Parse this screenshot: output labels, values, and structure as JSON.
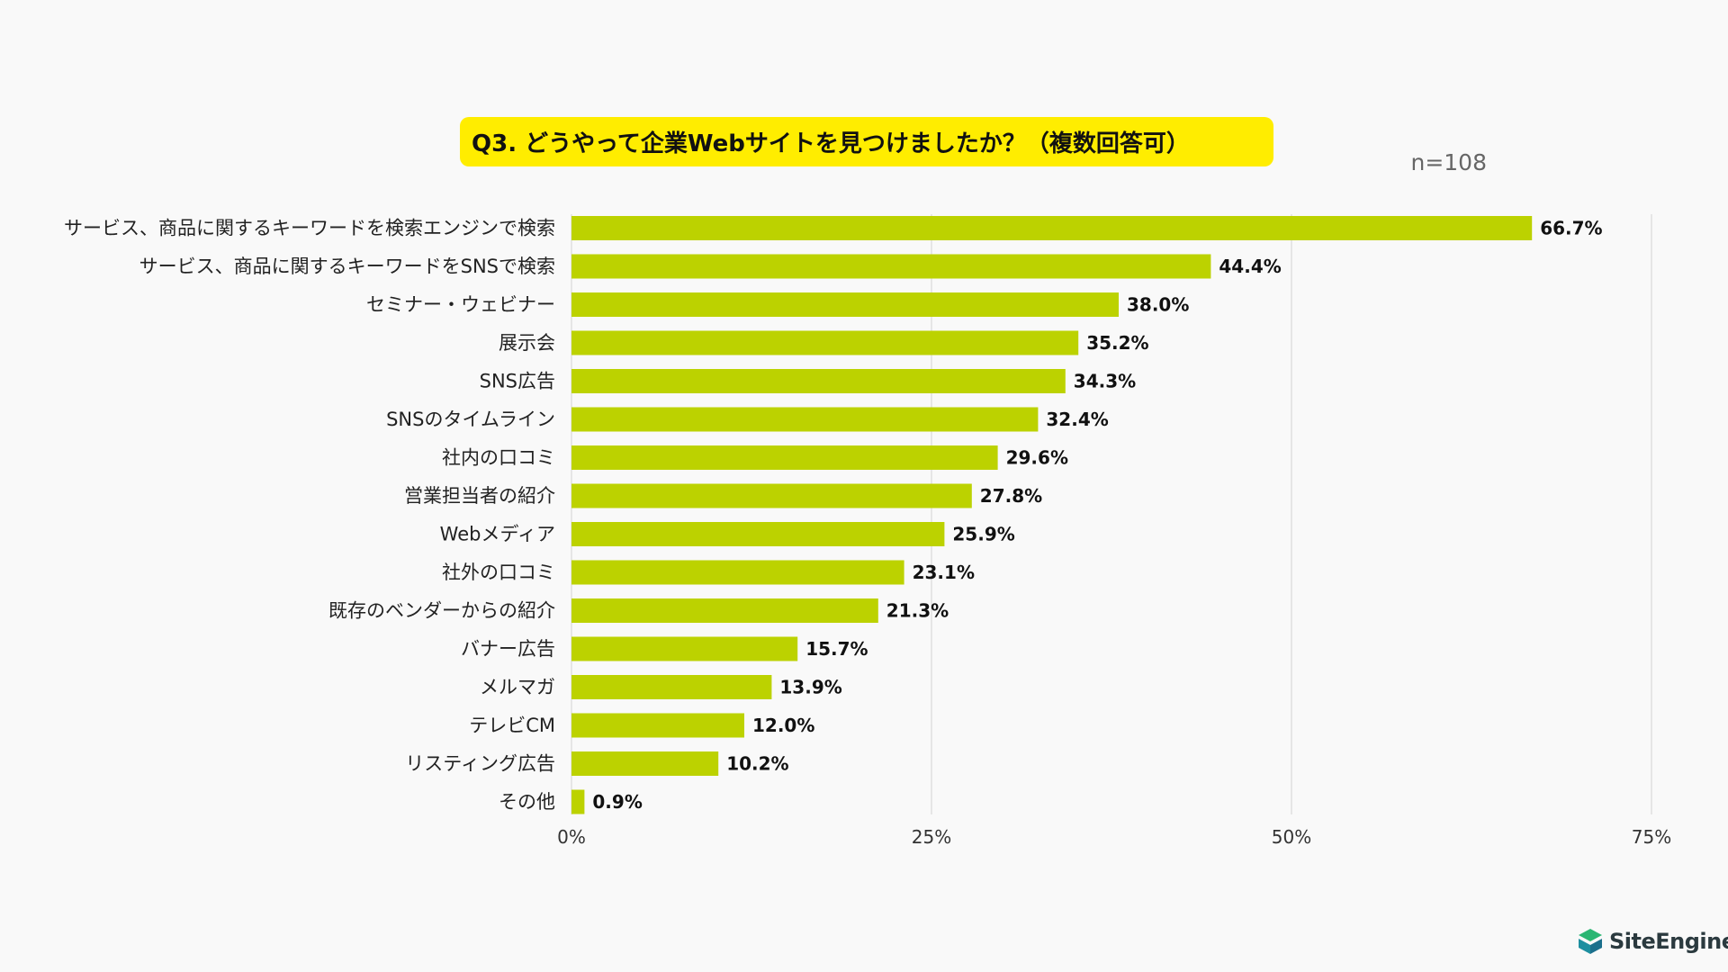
{
  "chart_data": {
    "type": "bar",
    "orientation": "horizontal",
    "title": "Q3. どうやって企業Webサイトを見つけましたか？（複数回答可）",
    "sample_size": "n=108",
    "categories": [
      "サービス、商品に関するキーワードを検索エンジンで検索",
      "サービス、商品に関するキーワードをSNSで検索",
      "セミナー・ウェビナー",
      "展示会",
      "SNS広告",
      "SNSのタイムライン",
      "社内の口コミ",
      "営業担当者の紹介",
      "Webメディア",
      "社外の口コミ",
      "既存のベンダーからの紹介",
      "バナー広告",
      "メルマガ",
      "テレビCM",
      "リスティング広告",
      "その他"
    ],
    "values": [
      66.7,
      44.4,
      38.0,
      35.2,
      34.3,
      32.4,
      29.6,
      27.8,
      25.9,
      23.1,
      21.3,
      15.7,
      13.9,
      12.0,
      10.2,
      0.9
    ],
    "value_labels": [
      "66.7%",
      "44.4%",
      "38.0%",
      "35.2%",
      "34.3%",
      "32.4%",
      "29.6%",
      "27.8%",
      "25.9%",
      "23.1%",
      "21.3%",
      "15.7%",
      "13.9%",
      "12.0%",
      "10.2%",
      "0.9%"
    ],
    "xlim": [
      0,
      75
    ],
    "xticks": [
      0,
      25,
      50,
      75
    ],
    "xtick_labels": [
      "0%",
      "25%",
      "50%",
      "75%"
    ],
    "grid": true,
    "bar_color": "#bcd200"
  },
  "colors": {
    "title_bg": "#ffed00",
    "bar": "#bcd200",
    "logo_accent": "#2bb673"
  },
  "logo": {
    "text": "SiteEngine",
    "icon": "site-engine-logo-icon"
  }
}
